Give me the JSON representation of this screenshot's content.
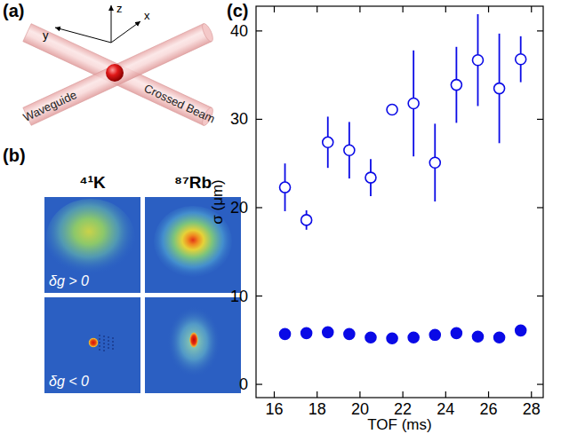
{
  "panel_a": {
    "letter": "(a)",
    "axis_labels": [
      "z",
      "y",
      "x"
    ],
    "beam_labels": [
      "Waveguide",
      "Crossed Beam"
    ]
  },
  "panel_b": {
    "letter": "(b)",
    "column_labels": [
      "⁴¹K",
      "⁸⁷Rb"
    ],
    "row_labels": [
      "δg > 0",
      "δg < 0"
    ]
  },
  "chart_data": {
    "type": "scatter",
    "panel_label": "(c)",
    "x_label": "TOF (ms)",
    "y_label": "σ (μm)",
    "x": [
      16.5,
      17.5,
      18.5,
      19.5,
      20.5,
      21.5,
      22.5,
      23.5,
      24.5,
      25.5,
      26.5,
      27.5
    ],
    "series": [
      {
        "marker": "circle-open",
        "color": "#0a0ae6",
        "values": [
          22.3,
          18.6,
          27.4,
          26.5,
          23.4,
          31.1,
          31.8,
          25.1,
          33.9,
          36.7,
          33.5,
          36.8
        ],
        "errors": [
          2.7,
          1.1,
          2.9,
          3.2,
          2.1,
          0.6,
          6.0,
          4.4,
          4.3,
          5.2,
          6.2,
          2.6
        ]
      },
      {
        "marker": "circle",
        "color": "#0a0ae6",
        "values": [
          5.7,
          5.8,
          5.9,
          5.7,
          5.3,
          5.2,
          5.3,
          5.6,
          5.8,
          5.4,
          5.3,
          6.1
        ]
      }
    ],
    "xlim": [
      15.15,
      28.55
    ],
    "ylim": [
      -1.5,
      42.8
    ],
    "xticks": [
      16,
      18,
      20,
      22,
      24,
      26,
      28
    ],
    "yticks": [
      0,
      10,
      20,
      30,
      40
    ],
    "grid": false
  }
}
